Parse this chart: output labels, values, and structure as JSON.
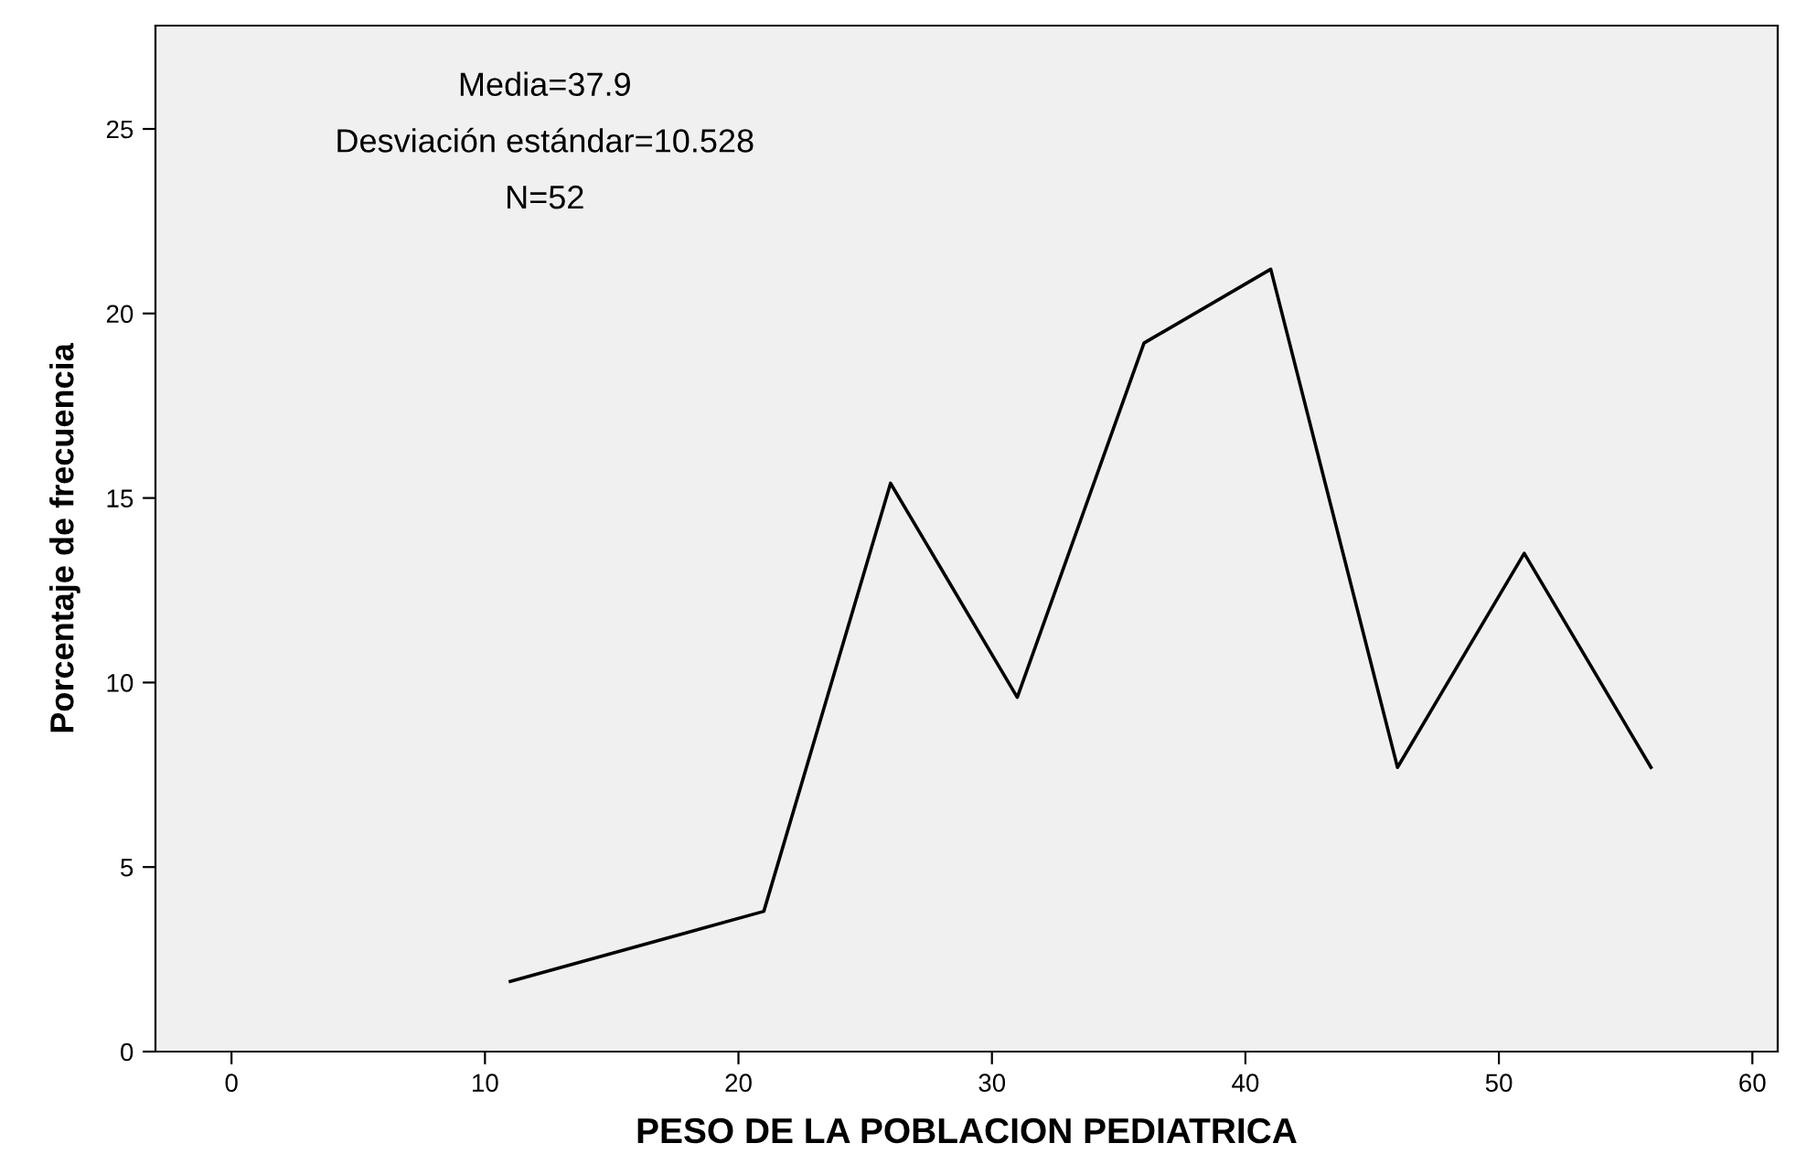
{
  "chart_data": {
    "type": "line",
    "xlabel": "PESO DE LA POBLACION PEDIATRICA",
    "ylabel": "Porcentaje de frecuencia",
    "x": [
      11,
      21,
      26,
      31,
      36,
      41,
      46,
      51,
      56
    ],
    "series": [
      {
        "color": "#000000",
        "values": [
          1.9,
          3.8,
          15.4,
          9.6,
          19.2,
          21.2,
          7.7,
          13.5,
          7.7
        ]
      }
    ],
    "xlim": [
      -3,
      61
    ],
    "ylim": [
      0,
      27.8
    ],
    "xticks": [
      0,
      10,
      20,
      30,
      40,
      50,
      60
    ],
    "yticks": [
      0,
      5,
      10,
      15,
      20,
      25
    ],
    "annotations": [
      "Media=37.9",
      "Desviación estándar=10.528",
      "N=52"
    ],
    "grid": false,
    "legend": false,
    "marker": "none",
    "line_style": "solid"
  }
}
